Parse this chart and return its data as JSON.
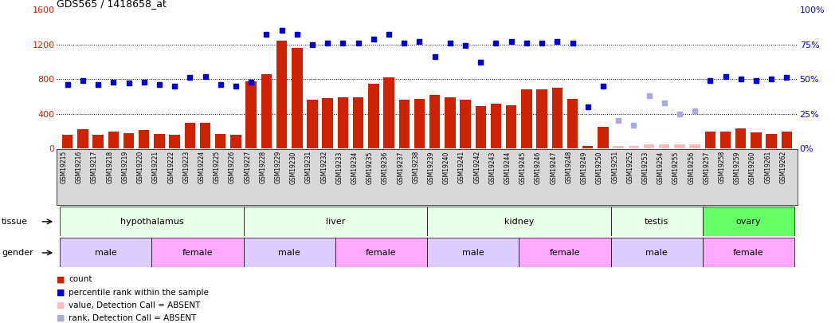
{
  "title": "GDS565 / 1418658_at",
  "samples": [
    "GSM19215",
    "GSM19216",
    "GSM19217",
    "GSM19218",
    "GSM19219",
    "GSM19220",
    "GSM19221",
    "GSM19222",
    "GSM19223",
    "GSM19224",
    "GSM19225",
    "GSM19226",
    "GSM19227",
    "GSM19228",
    "GSM19229",
    "GSM19230",
    "GSM19231",
    "GSM19232",
    "GSM19233",
    "GSM19234",
    "GSM19235",
    "GSM19236",
    "GSM19237",
    "GSM19238",
    "GSM19239",
    "GSM19240",
    "GSM19241",
    "GSM19242",
    "GSM19243",
    "GSM19244",
    "GSM19245",
    "GSM19246",
    "GSM19247",
    "GSM19248",
    "GSM19249",
    "GSM19250",
    "GSM19251",
    "GSM19252",
    "GSM19253",
    "GSM19254",
    "GSM19255",
    "GSM19256",
    "GSM19257",
    "GSM19258",
    "GSM19259",
    "GSM19260",
    "GSM19261",
    "GSM19262"
  ],
  "bar_values": [
    160,
    220,
    160,
    200,
    180,
    210,
    170,
    155,
    295,
    295,
    170,
    160,
    770,
    860,
    1240,
    1160,
    560,
    580,
    590,
    590,
    750,
    820,
    560,
    570,
    620,
    590,
    560,
    490,
    520,
    500,
    680,
    680,
    700,
    570,
    30,
    250,
    30,
    30,
    50,
    50,
    50,
    50,
    200,
    200,
    230,
    190,
    170,
    200
  ],
  "bar_absent": [
    false,
    false,
    false,
    false,
    false,
    false,
    false,
    false,
    false,
    false,
    false,
    false,
    false,
    false,
    false,
    false,
    false,
    false,
    false,
    false,
    false,
    false,
    false,
    false,
    false,
    false,
    false,
    false,
    false,
    false,
    false,
    false,
    false,
    false,
    false,
    false,
    true,
    true,
    true,
    true,
    true,
    true,
    false,
    false,
    false,
    false,
    false,
    false
  ],
  "dot_values": [
    46,
    49,
    46,
    48,
    47,
    48,
    46,
    45,
    51,
    52,
    46,
    45,
    48,
    82,
    85,
    82,
    75,
    76,
    76,
    76,
    79,
    82,
    76,
    77,
    66,
    76,
    74,
    62,
    76,
    77,
    76,
    76,
    77,
    76,
    30,
    45,
    20,
    17,
    38,
    33,
    25,
    27,
    49,
    52,
    50,
    49,
    50,
    51
  ],
  "dot_absent": [
    false,
    false,
    false,
    false,
    false,
    false,
    false,
    false,
    false,
    false,
    false,
    false,
    false,
    false,
    false,
    false,
    false,
    false,
    false,
    false,
    false,
    false,
    false,
    false,
    false,
    false,
    false,
    false,
    false,
    false,
    false,
    false,
    false,
    false,
    false,
    false,
    true,
    true,
    true,
    true,
    true,
    true,
    false,
    false,
    false,
    false,
    false,
    false
  ],
  "tissues": [
    {
      "label": "hypothalamus",
      "start": 0,
      "end": 11,
      "color": "#e8ffe8"
    },
    {
      "label": "liver",
      "start": 12,
      "end": 23,
      "color": "#e8ffe8"
    },
    {
      "label": "kidney",
      "start": 24,
      "end": 35,
      "color": "#e8ffe8"
    },
    {
      "label": "testis",
      "start": 36,
      "end": 41,
      "color": "#e8ffe8"
    },
    {
      "label": "ovary",
      "start": 42,
      "end": 47,
      "color": "#66ff66"
    }
  ],
  "genders": [
    {
      "label": "male",
      "start": 0,
      "end": 5,
      "color": "#ddccff"
    },
    {
      "label": "female",
      "start": 6,
      "end": 11,
      "color": "#ffaaff"
    },
    {
      "label": "male",
      "start": 12,
      "end": 17,
      "color": "#ddccff"
    },
    {
      "label": "female",
      "start": 18,
      "end": 23,
      "color": "#ffaaff"
    },
    {
      "label": "male",
      "start": 24,
      "end": 29,
      "color": "#ddccff"
    },
    {
      "label": "female",
      "start": 30,
      "end": 35,
      "color": "#ffaaff"
    },
    {
      "label": "male",
      "start": 36,
      "end": 41,
      "color": "#ddccff"
    },
    {
      "label": "female",
      "start": 42,
      "end": 47,
      "color": "#ffaaff"
    }
  ],
  "ylim_left": [
    0,
    1600
  ],
  "ylim_right": [
    0,
    100
  ],
  "yticks_left": [
    0,
    400,
    800,
    1200,
    1600
  ],
  "yticks_right": [
    0,
    25,
    50,
    75,
    100
  ],
  "bar_color": "#cc2200",
  "bar_absent_color": "#ffbbbb",
  "dot_color": "#0000cc",
  "dot_absent_color": "#aaaadd",
  "xtick_bg": "#d8d8d8",
  "legend_items": [
    {
      "color": "#cc2200",
      "label": "count"
    },
    {
      "color": "#0000cc",
      "label": "percentile rank within the sample"
    },
    {
      "color": "#ffbbbb",
      "label": "value, Detection Call = ABSENT"
    },
    {
      "color": "#aaaadd",
      "label": "rank, Detection Call = ABSENT"
    }
  ]
}
